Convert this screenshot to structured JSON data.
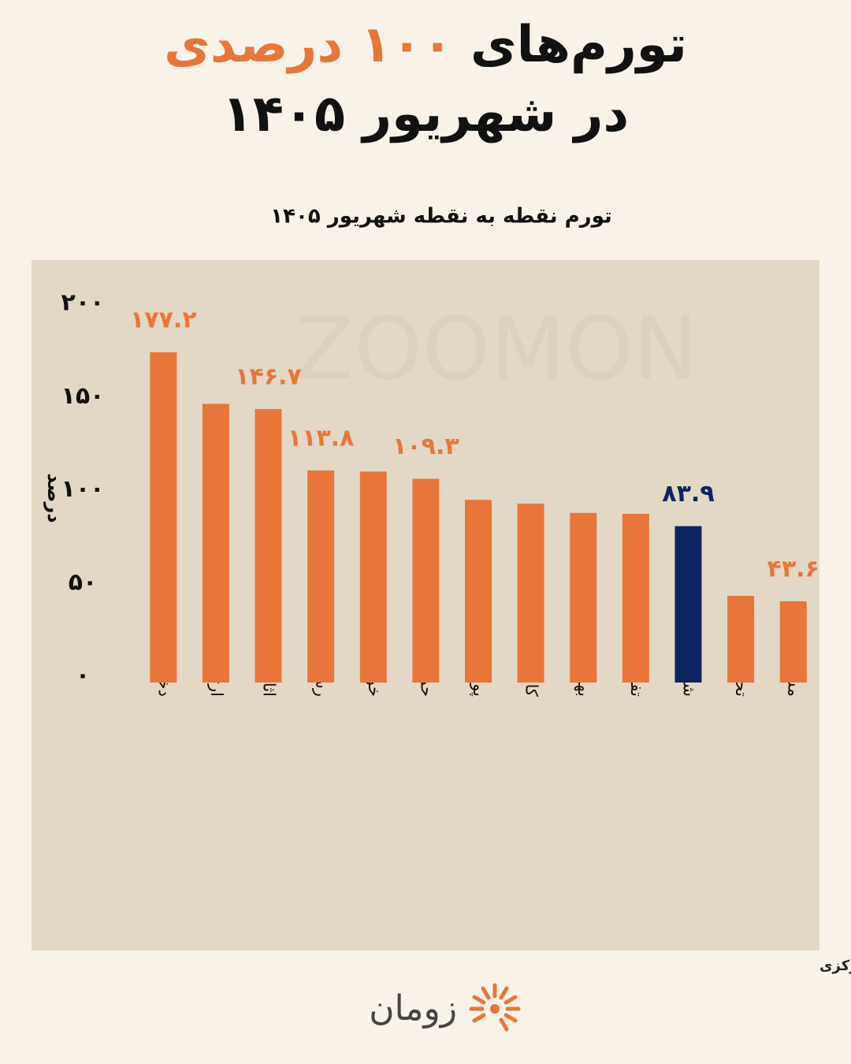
{
  "title": {
    "main": "تورم‌های",
    "highlight": "۱۰۰ درصدی",
    "second_line": "در شهریور ۱۴۰۵"
  },
  "chart_data": {
    "type": "bar",
    "title": "تورم نقطه به نقطه شهریور ۱۴۰۵",
    "y_label": "درصد",
    "watermark": "ZOOMON",
    "categories": [
      "دخانیات",
      "ارتباطات",
      "اثاث، لوازم و خدمات در خانه",
      "رستوران و هتل",
      "خوراکی‌ها و آشامیدنی‌ها",
      "حمل و نقل",
      "پوشاک و کفش",
      "کالاها و خدمات متفرقه",
      "بهداشت و درمان",
      "تفریح و امور فرهنگی",
      "شاخص کل",
      "تحصیل",
      "مسکن"
    ],
    "values": [
      177.2,
      149.5,
      146.7,
      113.8,
      113.2,
      109.3,
      98,
      96,
      91,
      90.5,
      83.9,
      46.5,
      43.6
    ],
    "value_labels": [
      "۱۷۷.۲",
      null,
      "۱۴۶.۷",
      "۱۱۳.۸",
      null,
      "۱۰۹.۳",
      null,
      null,
      null,
      null,
      "۸۳.۹",
      null,
      "۴۳.۶"
    ],
    "colors": [
      "#e8763a",
      "#e8763a",
      "#e8763a",
      "#e8763a",
      "#e8763a",
      "#e8763a",
      "#e8763a",
      "#e8763a",
      "#e8763a",
      "#e8763a",
      "#0e2461",
      "#e8763a",
      "#e8763a"
    ],
    "ylim": [
      0,
      200
    ],
    "yticks": [
      {
        "value": 0,
        "label": "۰"
      },
      {
        "value": 50,
        "label": "۵۰"
      },
      {
        "value": 100,
        "label": "۱۰۰"
      },
      {
        "value": 150,
        "label": "۱۵۰"
      },
      {
        "value": 200,
        "label": "۲۰۰"
      }
    ],
    "grid": false
  },
  "source": "منبع داده: بانک مرکزی",
  "logo": "زومان"
}
